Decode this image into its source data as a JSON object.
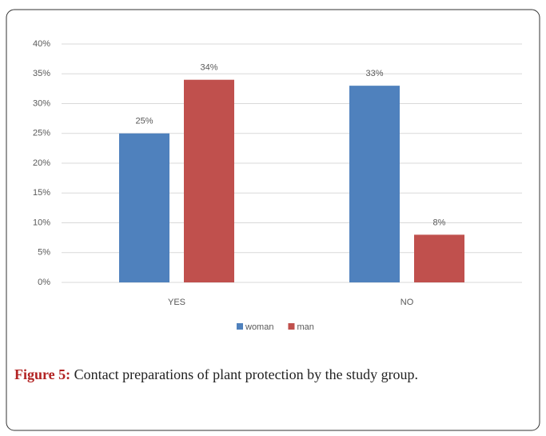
{
  "chart_data": {
    "type": "bar",
    "categories": [
      "YES",
      "NO"
    ],
    "series": [
      {
        "name": "woman",
        "color": "#4f81bd",
        "values": [
          25,
          33
        ],
        "value_labels": [
          "25%",
          "33%"
        ]
      },
      {
        "name": "man",
        "color": "#c0504d",
        "values": [
          34,
          8
        ],
        "value_labels": [
          "34%",
          "8%"
        ]
      }
    ],
    "ylim": [
      0,
      40
    ],
    "yticks": [
      {
        "value": 0,
        "label": "0%"
      },
      {
        "value": 5,
        "label": "5%"
      },
      {
        "value": 10,
        "label": "10%"
      },
      {
        "value": 15,
        "label": "15%"
      },
      {
        "value": 20,
        "label": "20%"
      },
      {
        "value": 25,
        "label": "25%"
      },
      {
        "value": 30,
        "label": "30%"
      },
      {
        "value": 35,
        "label": "35%"
      },
      {
        "value": 40,
        "label": "40%"
      }
    ],
    "grid": true,
    "legend": "bottom"
  },
  "caption": {
    "label": "Figure 5:",
    "text": "Contact preparations of plant protection by the study group."
  }
}
